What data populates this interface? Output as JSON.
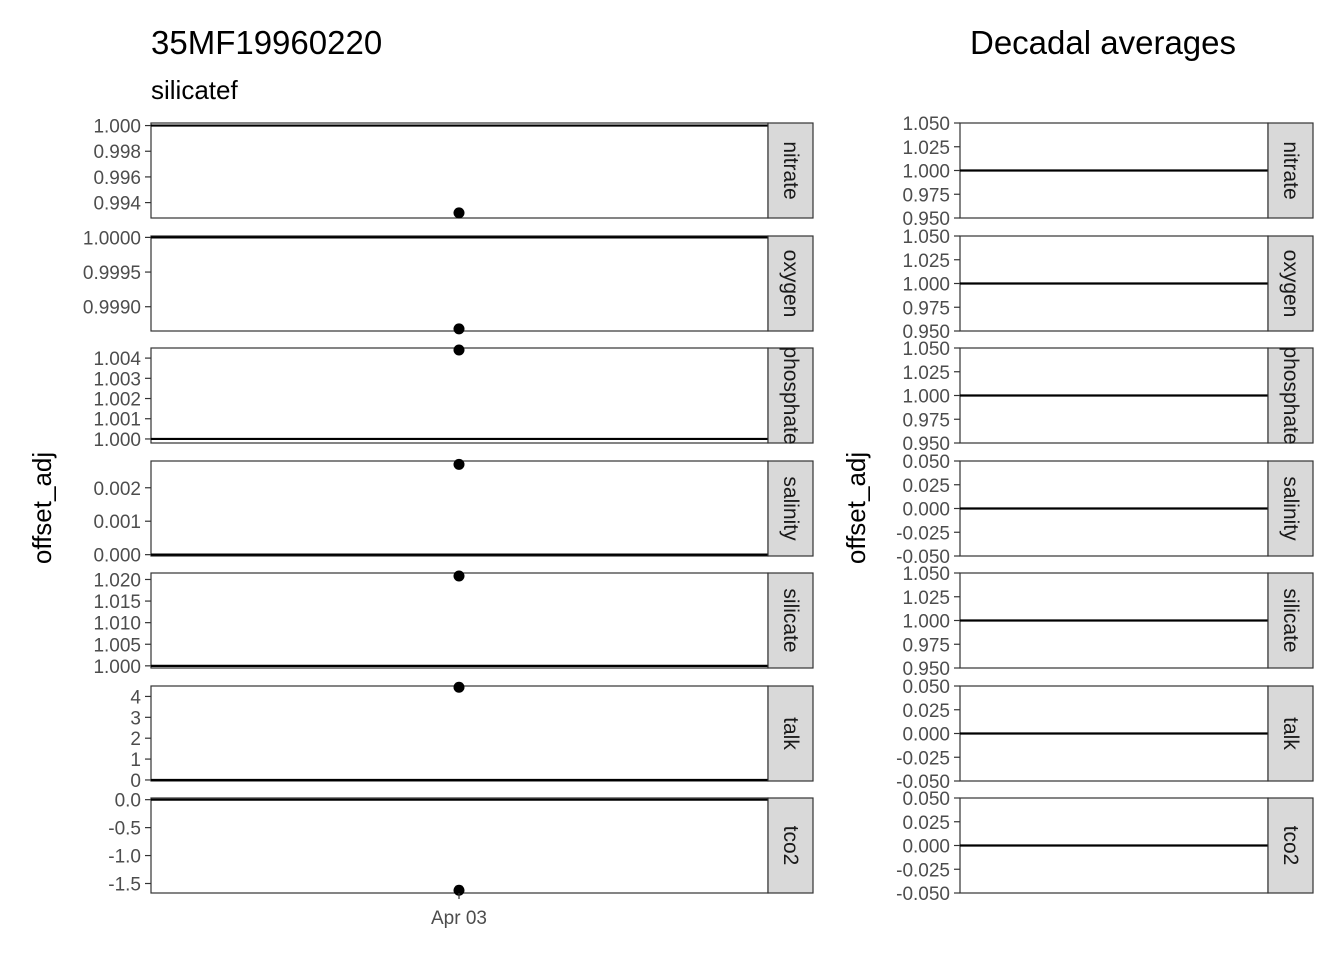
{
  "colors": {
    "panel_border": "#333333",
    "strip_fill": "#d9d9d9",
    "tick_text": "#4d4d4d",
    "line": "#000000",
    "point": "#000000",
    "background": "#ffffff"
  },
  "chart_data": [
    {
      "type": "scatter",
      "title": "35MF19960220",
      "subtitle": "silicatef",
      "ylabel": "offset_adj",
      "x_tick_labels": [
        "Apr 03"
      ],
      "x": [
        "Apr 03"
      ],
      "reference_line": "offset_adj = baseline (1 for ratio parameters, 0 for difference parameters)",
      "facets": [
        {
          "strip": "nitrate",
          "ylim": [
            0.9928,
            1.0002
          ],
          "yticks": [
            0.994,
            0.996,
            0.998,
            1.0
          ],
          "tick_labels": [
            "0.994",
            "0.996",
            "0.998",
            "1.000"
          ],
          "hline": 1.0,
          "points": [
            {
              "x": "Apr 03",
              "y": 0.9932
            }
          ]
        },
        {
          "strip": "oxygen",
          "ylim": [
            0.99865,
            1.00002
          ],
          "yticks": [
            0.999,
            0.9995,
            1.0
          ],
          "tick_labels": [
            "0.9990",
            "0.9995",
            "1.0000"
          ],
          "hline": 1.0,
          "points": [
            {
              "x": "Apr 03",
              "y": 0.99868
            }
          ]
        },
        {
          "strip": "phosphate",
          "ylim": [
            0.9998,
            1.0045
          ],
          "yticks": [
            1.0,
            1.001,
            1.002,
            1.003,
            1.004
          ],
          "tick_labels": [
            "1.000",
            "1.001",
            "1.002",
            "1.003",
            "1.004"
          ],
          "hline": 1.0,
          "points": [
            {
              "x": "Apr 03",
              "y": 1.0044
            }
          ]
        },
        {
          "strip": "salinity",
          "ylim": [
            -4e-05,
            0.0028
          ],
          "yticks": [
            0.0,
            0.001,
            0.002
          ],
          "tick_labels": [
            "0.000",
            "0.001",
            "0.002"
          ],
          "hline": 0.0,
          "points": [
            {
              "x": "Apr 03",
              "y": 0.0027
            }
          ]
        },
        {
          "strip": "silicate",
          "ylim": [
            0.9995,
            1.0215
          ],
          "yticks": [
            1.0,
            1.005,
            1.01,
            1.015,
            1.02
          ],
          "tick_labels": [
            "1.000",
            "1.005",
            "1.010",
            "1.015",
            "1.020"
          ],
          "hline": 1.0,
          "points": [
            {
              "x": "Apr 03",
              "y": 1.0208
            }
          ]
        },
        {
          "strip": "talk",
          "ylim": [
            -0.05,
            4.5
          ],
          "yticks": [
            0,
            1,
            2,
            3,
            4
          ],
          "tick_labels": [
            "0",
            "1",
            "2",
            "3",
            "4"
          ],
          "hline": 0.0,
          "points": [
            {
              "x": "Apr 03",
              "y": 4.44
            }
          ]
        },
        {
          "strip": "tco2",
          "ylim": [
            -1.67,
            0.03
          ],
          "yticks": [
            -1.5,
            -1.0,
            -0.5,
            0.0
          ],
          "tick_labels": [
            "-1.5",
            "-1.0",
            "-0.5",
            "0.0"
          ],
          "hline": 0.0,
          "points": [
            {
              "x": "Apr 03",
              "y": -1.62
            }
          ]
        }
      ]
    },
    {
      "type": "line",
      "title": "Decadal averages",
      "ylabel": "offset_adj",
      "facets": [
        {
          "strip": "nitrate",
          "ylim": [
            0.95,
            1.05
          ],
          "yticks": [
            0.95,
            0.975,
            1.0,
            1.025,
            1.05
          ],
          "tick_labels": [
            "0.950",
            "0.975",
            "1.000",
            "1.025",
            "1.050"
          ],
          "hline": 1.0
        },
        {
          "strip": "oxygen",
          "ylim": [
            0.95,
            1.05
          ],
          "yticks": [
            0.95,
            0.975,
            1.0,
            1.025,
            1.05
          ],
          "tick_labels": [
            "0.950",
            "0.975",
            "1.000",
            "1.025",
            "1.050"
          ],
          "hline": 1.0
        },
        {
          "strip": "phosphate",
          "ylim": [
            0.95,
            1.05
          ],
          "yticks": [
            0.95,
            0.975,
            1.0,
            1.025,
            1.05
          ],
          "tick_labels": [
            "0.950",
            "0.975",
            "1.000",
            "1.025",
            "1.050"
          ],
          "hline": 1.0
        },
        {
          "strip": "salinity",
          "ylim": [
            -0.05,
            0.05
          ],
          "yticks": [
            -0.05,
            -0.025,
            0.0,
            0.025,
            0.05
          ],
          "tick_labels": [
            "-0.050",
            "-0.025",
            "0.000",
            "0.025",
            "0.050"
          ],
          "hline": 0.0
        },
        {
          "strip": "silicate",
          "ylim": [
            0.95,
            1.05
          ],
          "yticks": [
            0.95,
            0.975,
            1.0,
            1.025,
            1.05
          ],
          "tick_labels": [
            "0.950",
            "0.975",
            "1.000",
            "1.025",
            "1.050"
          ],
          "hline": 1.0
        },
        {
          "strip": "talk",
          "ylim": [
            -0.05,
            0.05
          ],
          "yticks": [
            -0.05,
            -0.025,
            0.0,
            0.025,
            0.05
          ],
          "tick_labels": [
            "-0.050",
            "-0.025",
            "0.000",
            "0.025",
            "0.050"
          ],
          "hline": 0.0
        },
        {
          "strip": "tco2",
          "ylim": [
            -0.05,
            0.05
          ],
          "yticks": [
            -0.05,
            -0.025,
            0.0,
            0.025,
            0.05
          ],
          "tick_labels": [
            "-0.050",
            "-0.025",
            "0.000",
            "0.025",
            "0.050"
          ],
          "hline": 0.0
        }
      ]
    }
  ]
}
